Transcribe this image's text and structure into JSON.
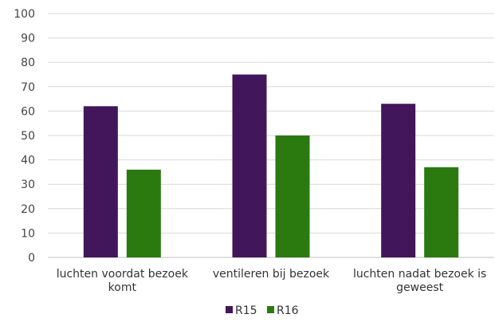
{
  "chart_data": {
    "type": "bar",
    "categories": [
      [
        "luchten voordat bezoek",
        "komt"
      ],
      [
        "ventileren bij bezoek"
      ],
      [
        "luchten nadat bezoek is",
        "geweest"
      ]
    ],
    "series": [
      {
        "name": "R15",
        "color": "#42165a",
        "values": [
          62,
          75,
          63
        ]
      },
      {
        "name": "R16",
        "color": "#2a7a10",
        "values": [
          36,
          50,
          37
        ]
      }
    ],
    "yticks": [
      0,
      10,
      20,
      30,
      40,
      50,
      60,
      70,
      80,
      90,
      100
    ],
    "ylim": [
      0,
      100
    ],
    "grid": true,
    "legend": "bottom-center"
  }
}
